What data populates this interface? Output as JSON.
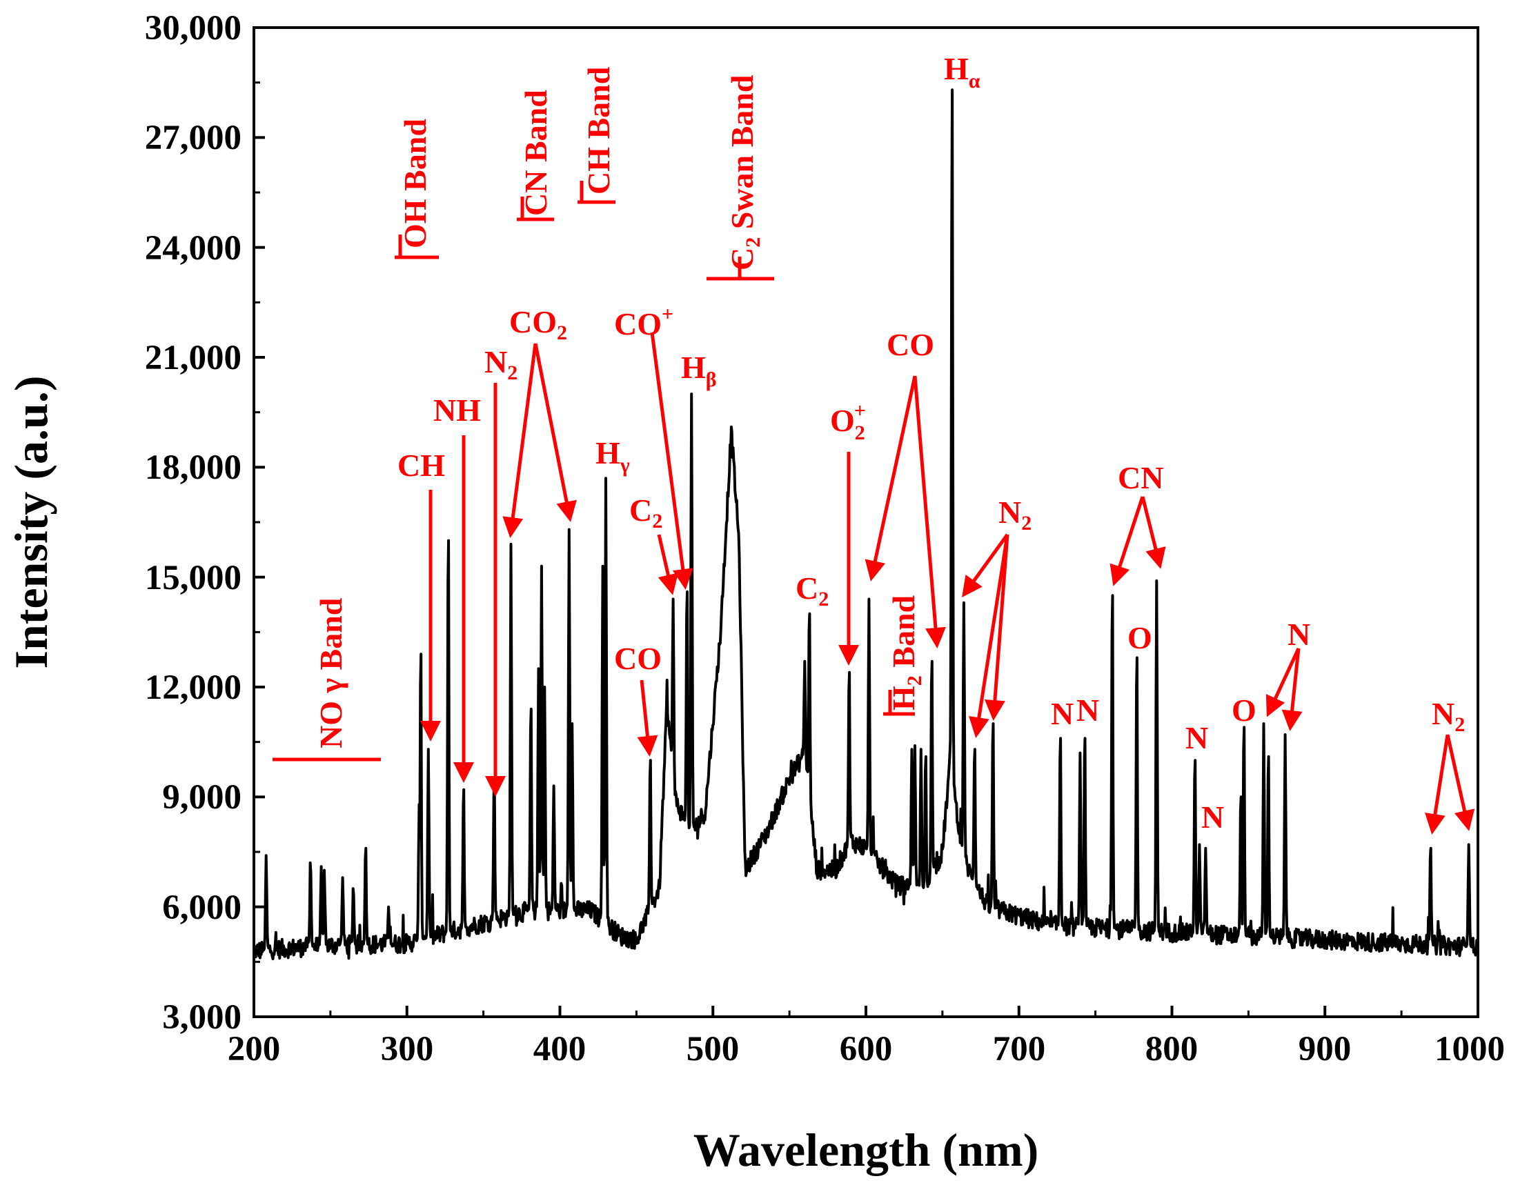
{
  "chart_data": {
    "type": "line",
    "title": "",
    "xlabel": "Wavelength (nm)",
    "ylabel": "Intensity (a.u.)",
    "xlim": [
      200,
      1000
    ],
    "ylim": [
      3000,
      30000
    ],
    "x_ticks": [
      200,
      300,
      400,
      500,
      600,
      700,
      800,
      900,
      1000
    ],
    "x_tick_labels": [
      "200",
      "300",
      "400",
      "500",
      "600",
      "700",
      "800",
      "900",
      "1000"
    ],
    "y_ticks": [
      3000,
      6000,
      9000,
      12000,
      15000,
      18000,
      21000,
      24000,
      27000,
      30000
    ],
    "y_tick_labels": [
      "3,000",
      "6,000",
      "9,000",
      "12,000",
      "15,000",
      "18,000",
      "21,000",
      "24,000",
      "27,000",
      "30,000"
    ],
    "series": [
      {
        "name": "Emission spectrum",
        "color": "#000000",
        "baseline": [
          [
            200,
            4800
          ],
          [
            250,
            4950
          ],
          [
            300,
            5000
          ],
          [
            340,
            5450
          ],
          [
            380,
            5900
          ],
          [
            420,
            5900
          ],
          [
            440,
            5200
          ],
          [
            450,
            5100
          ],
          [
            465,
            6500
          ],
          [
            470,
            11600
          ],
          [
            475,
            9000
          ],
          [
            485,
            8000
          ],
          [
            495,
            8600
          ],
          [
            505,
            13500
          ],
          [
            512,
            19000
          ],
          [
            517,
            16000
          ],
          [
            521,
            7000
          ],
          [
            535,
            8000
          ],
          [
            550,
            9500
          ],
          [
            560,
            10200
          ],
          [
            568,
            7000
          ],
          [
            580,
            7000
          ],
          [
            590,
            7800
          ],
          [
            600,
            7600
          ],
          [
            620,
            6600
          ],
          [
            640,
            6500
          ],
          [
            650,
            7500
          ],
          [
            655,
            10000
          ],
          [
            663,
            7500
          ],
          [
            670,
            6700
          ],
          [
            680,
            6000
          ],
          [
            720,
            5500
          ],
          [
            800,
            5300
          ],
          [
            900,
            5100
          ],
          [
            1000,
            4900
          ]
        ],
        "peaks": [
          [
            208,
            7400
          ],
          [
            237,
            7200
          ],
          [
            244,
            7100
          ],
          [
            246,
            7000
          ],
          [
            258,
            6800
          ],
          [
            265,
            6500
          ],
          [
            273,
            7600
          ],
          [
            288,
            6000
          ],
          [
            308,
            8800
          ],
          [
            309,
            12900
          ],
          [
            314,
            10300
          ],
          [
            327,
            16000
          ],
          [
            337,
            9200
          ],
          [
            357,
            9500
          ],
          [
            368,
            15900
          ],
          [
            381,
            11400
          ],
          [
            386,
            12500
          ],
          [
            388,
            15300
          ],
          [
            390,
            12000
          ],
          [
            396,
            9300
          ],
          [
            406,
            16300
          ],
          [
            408,
            11000
          ],
          [
            428,
            15300
          ],
          [
            430,
            17700
          ],
          [
            459,
            10000
          ],
          [
            474,
            14400
          ],
          [
            483,
            14600
          ],
          [
            486,
            20000
          ],
          [
            560,
            12700
          ],
          [
            563,
            14000
          ],
          [
            589,
            12400
          ],
          [
            602,
            14400
          ],
          [
            630,
            10300
          ],
          [
            632,
            10400
          ],
          [
            636,
            10300
          ],
          [
            639,
            10100
          ],
          [
            643,
            12700
          ],
          [
            656.3,
            28300
          ],
          [
            664,
            14300
          ],
          [
            671,
            10300
          ],
          [
            683,
            11000
          ],
          [
            727,
            10600
          ],
          [
            740,
            10200
          ],
          [
            743,
            10600
          ],
          [
            761,
            14500
          ],
          [
            777,
            12800
          ],
          [
            790,
            14900
          ],
          [
            815,
            10000
          ],
          [
            818,
            7700
          ],
          [
            822,
            7600
          ],
          [
            845,
            9000
          ],
          [
            847,
            10900
          ],
          [
            860,
            11000
          ],
          [
            863,
            10100
          ],
          [
            874,
            10700
          ],
          [
            969,
            7600
          ],
          [
            994,
            7700
          ]
        ]
      }
    ],
    "annotations": [
      {
        "type": "band",
        "label": "NO γ Band",
        "x_range": [
          213,
          284
        ],
        "y": 9900
      },
      {
        "type": "band",
        "label": "OH Band",
        "x_range": [
          292,
          321
        ],
        "y": 23700
      },
      {
        "type": "band",
        "label": "CN Band",
        "x_range": [
          372,
          397
        ],
        "y": 24800
      },
      {
        "type": "band",
        "label": "CH Band",
        "x_range": [
          411,
          436
        ],
        "y": 25300
      },
      {
        "type": "band",
        "label": "C₂ Swan Band",
        "x_range": [
          493,
          538
        ],
        "y": 23200
      },
      {
        "type": "band",
        "label": "H₂ Band",
        "x_range": [
          612,
          630
        ],
        "y": 11500
      },
      {
        "type": "line",
        "label": "CH",
        "peaks_nm": [
          314
        ]
      },
      {
        "type": "line",
        "label": "NH",
        "peaks_nm": [
          336
        ]
      },
      {
        "type": "line",
        "label": "N₂",
        "peaks_nm": [
          357
        ]
      },
      {
        "type": "line",
        "label": "CO₂",
        "peaks_nm": [
          368,
          406
        ]
      },
      {
        "type": "line",
        "label": "Hγ",
        "peaks_nm": [
          430
        ]
      },
      {
        "type": "line",
        "label": "C₂",
        "peaks_nm": [
          474
        ]
      },
      {
        "type": "line",
        "label": "CO",
        "peaks_nm": [
          459
        ]
      },
      {
        "type": "line",
        "label": "CO⁺",
        "peaks_nm": [
          483
        ]
      },
      {
        "type": "line",
        "label": "Hβ",
        "peaks_nm": [
          486
        ]
      },
      {
        "type": "line",
        "label": "C₂",
        "peaks_nm": [
          563
        ]
      },
      {
        "type": "line",
        "label": "O₂⁺",
        "peaks_nm": [
          589
        ]
      },
      {
        "type": "line",
        "label": "CO",
        "peaks_nm": [
          602,
          643
        ]
      },
      {
        "type": "line",
        "label": "Hα",
        "peaks_nm": [
          656.3
        ]
      },
      {
        "type": "line",
        "label": "N₂",
        "peaks_nm": [
          664,
          671,
          683
        ]
      },
      {
        "type": "line",
        "label": "N",
        "peaks_nm": [
          727
        ]
      },
      {
        "type": "line",
        "label": "N",
        "peaks_nm": [
          743
        ]
      },
      {
        "type": "line",
        "label": "CN",
        "peaks_nm": [
          761,
          790
        ]
      },
      {
        "type": "line",
        "label": "O",
        "peaks_nm": [
          777
        ]
      },
      {
        "type": "line",
        "label": "N",
        "peaks_nm": [
          815
        ]
      },
      {
        "type": "line",
        "label": "N",
        "peaks_nm": [
          822
        ]
      },
      {
        "type": "line",
        "label": "O",
        "peaks_nm": [
          847
        ]
      },
      {
        "type": "line",
        "label": "N",
        "peaks_nm": [
          860,
          874
        ]
      },
      {
        "type": "line",
        "label": "N₂",
        "peaks_nm": [
          969,
          994
        ]
      }
    ]
  }
}
